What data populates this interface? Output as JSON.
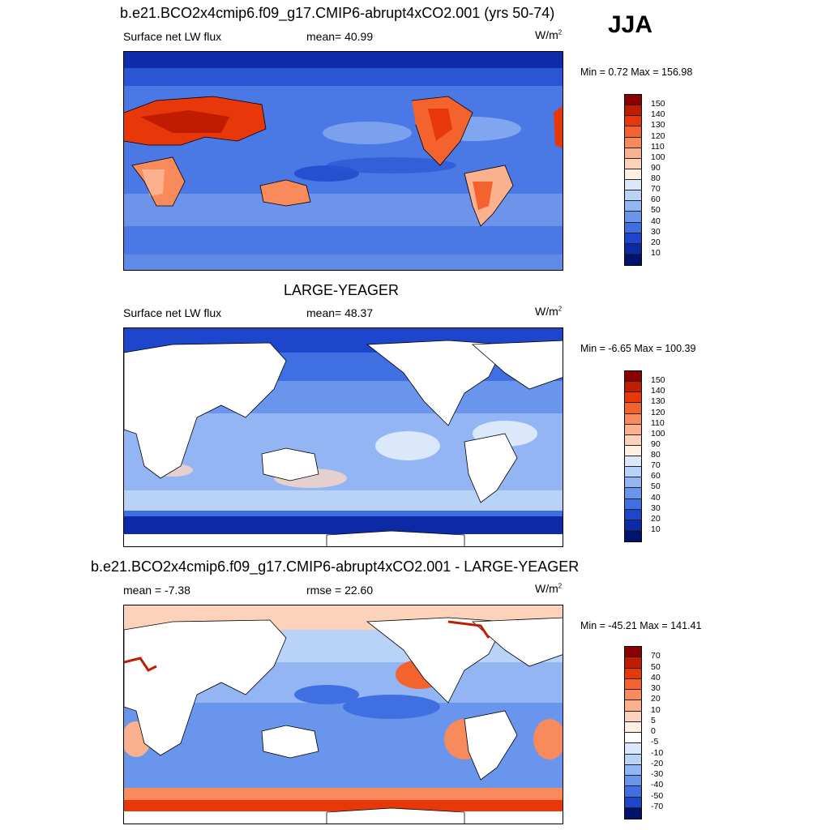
{
  "season": "JJA",
  "panels": [
    {
      "title": "b.e21.BCO2x4cmip6.f09_g17.CMIP6-abrupt4xCO2.001 (yrs 50-74)",
      "left_label": "Surface net LW flux",
      "mid_label": "mean=  40.99",
      "units": "W/m",
      "units_sup": "2",
      "minmax": "Min =   0.72 Max = 156.98",
      "colorbar": {
        "labels": [
          "150",
          "140",
          "130",
          "120",
          "110",
          "100",
          "90",
          "80",
          "70",
          "60",
          "50",
          "40",
          "30",
          "20",
          "10"
        ],
        "colors": [
          "#8b0000",
          "#c21c00",
          "#e8380a",
          "#f4622e",
          "#f98a5c",
          "#fbb08e",
          "#fdd2bb",
          "#fff0e1",
          "#dbe8fb",
          "#b9d2f8",
          "#93b5f3",
          "#6a95ec",
          "#3f6fe0",
          "#1e46cc",
          "#0c2aa6",
          "#00146e"
        ]
      }
    },
    {
      "title": "LARGE-YEAGER",
      "left_label": "Surface net LW flux",
      "mid_label": "mean=  48.37",
      "units": "W/m",
      "units_sup": "2",
      "minmax": "Min =  -6.65 Max = 100.39",
      "colorbar": {
        "labels": [
          "150",
          "140",
          "130",
          "120",
          "110",
          "100",
          "90",
          "80",
          "70",
          "60",
          "50",
          "40",
          "30",
          "20",
          "10"
        ],
        "colors": [
          "#8b0000",
          "#c21c00",
          "#e8380a",
          "#f4622e",
          "#f98a5c",
          "#fbb08e",
          "#fdd2bb",
          "#fff0e1",
          "#dbe8fb",
          "#b9d2f8",
          "#93b5f3",
          "#6a95ec",
          "#3f6fe0",
          "#1e46cc",
          "#0c2aa6",
          "#00146e"
        ]
      }
    },
    {
      "title": "b.e21.BCO2x4cmip6.f09_g17.CMIP6-abrupt4xCO2.001 - LARGE-YEAGER",
      "left_label": "mean =  -7.38",
      "mid_label": "rmse =  22.60",
      "units": "W/m",
      "units_sup": "2",
      "minmax": "Min = -45.21 Max = 141.41",
      "colorbar": {
        "labels": [
          "70",
          "50",
          "40",
          "30",
          "20",
          "10",
          "5",
          "0",
          "-5",
          "-10",
          "-20",
          "-30",
          "-40",
          "-50",
          "-70"
        ],
        "colors": [
          "#8b0000",
          "#c21c00",
          "#e8380a",
          "#f4622e",
          "#f98a5c",
          "#fbb08e",
          "#fdd2bb",
          "#fff0e1",
          "#ffffff",
          "#dbe8fb",
          "#b9d2f8",
          "#93b5f3",
          "#6a95ec",
          "#3f6fe0",
          "#1e46cc",
          "#00146e"
        ]
      }
    }
  ]
}
